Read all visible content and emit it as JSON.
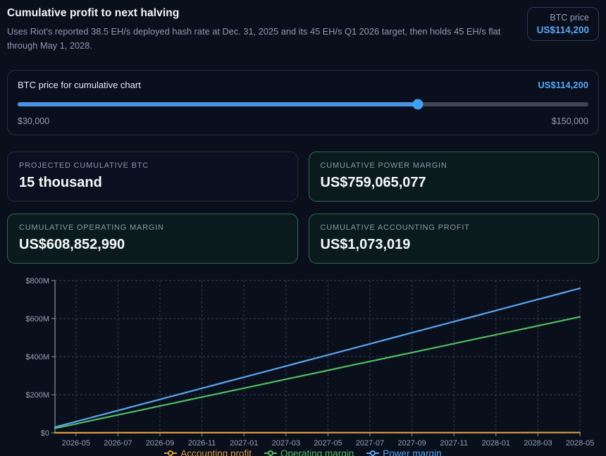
{
  "header": {
    "title": "Cumulative profit to next halving",
    "description": "Uses Riot's reported 38.5 EH/s deployed hash rate at Dec. 31, 2025 and its 45 EH/s Q1 2026 target, then holds 45 EH/s flat through May 1, 2028.",
    "btc_price_label": "BTC price",
    "btc_price_value": "US$114,200"
  },
  "slider": {
    "label": "BTC price for cumulative chart",
    "value_label": "US$114,200",
    "value": 114200,
    "min": 30000,
    "max": 150000,
    "min_label": "$30,000",
    "max_label": "$150,000",
    "percent": 70.17
  },
  "stats": [
    {
      "label": "PROJECTED CUMULATIVE BTC",
      "value": "15 thousand",
      "accent": false
    },
    {
      "label": "CUMULATIVE POWER MARGIN",
      "value": "US$759,065,077",
      "accent": true
    },
    {
      "label": "CUMULATIVE OPERATING MARGIN",
      "value": "US$608,852,990",
      "accent": true
    },
    {
      "label": "CUMULATIVE ACCOUNTING PROFIT",
      "value": "US$1,073,019",
      "accent": true
    }
  ],
  "colors": {
    "background": "#0a0f1c",
    "accent_blue": "#58a8f2",
    "slider_fill": "#4a94e4",
    "slider_track": "#40464f",
    "card_green_border": "#2d6a55",
    "axis": "#8b95a5",
    "grid": "#343d52",
    "tick_text": "#96a0b1",
    "series_accounting": "#d89a3e",
    "series_operating": "#53bd63",
    "series_power": "#5aa6ee"
  },
  "chart_data": {
    "type": "line",
    "title": "",
    "xlabel": "",
    "ylabel": "",
    "unit": "USD millions",
    "ylim": [
      0,
      800
    ],
    "grid": "dashed",
    "legend_position": "bottom",
    "y_ticks": [
      0,
      200,
      400,
      600,
      800
    ],
    "y_tick_labels": [
      "$0",
      "$200M",
      "$400M",
      "$600M",
      "$800M"
    ],
    "x": [
      "2026-04",
      "2026-05",
      "2026-06",
      "2026-07",
      "2026-08",
      "2026-09",
      "2026-10",
      "2026-11",
      "2026-12",
      "2027-01",
      "2027-02",
      "2027-03",
      "2027-04",
      "2027-05",
      "2027-06",
      "2027-07",
      "2027-08",
      "2027-09",
      "2027-10",
      "2027-11",
      "2027-12",
      "2028-01",
      "2028-02",
      "2028-03",
      "2028-04",
      "2028-05"
    ],
    "x_ticks": [
      "2026-05",
      "2026-07",
      "2026-09",
      "2026-11",
      "2027-01",
      "2027-03",
      "2027-05",
      "2027-07",
      "2027-09",
      "2027-11",
      "2028-01",
      "2028-03",
      "2028-05"
    ],
    "series": [
      {
        "name": "Accounting profit",
        "color": "#d89a3e",
        "values": [
          0.0,
          0.1,
          0.1,
          0.2,
          0.2,
          0.2,
          0.3,
          0.3,
          0.4,
          0.4,
          0.5,
          0.5,
          0.5,
          0.6,
          0.6,
          0.7,
          0.7,
          0.7,
          0.8,
          0.8,
          0.9,
          0.9,
          0.9,
          1.0,
          1.0,
          1.1
        ]
      },
      {
        "name": "Operating margin",
        "color": "#53bd63",
        "values": [
          23.4,
          46.8,
          70.3,
          93.7,
          117.1,
          140.5,
          163.9,
          187.3,
          210.8,
          234.2,
          257.6,
          281.0,
          304.4,
          327.8,
          351.3,
          374.7,
          398.1,
          421.5,
          444.9,
          468.3,
          491.8,
          515.2,
          538.6,
          562.0,
          585.4,
          608.9
        ]
      },
      {
        "name": "Power margin",
        "color": "#5aa6ee",
        "values": [
          29.2,
          58.4,
          87.6,
          116.8,
          146.0,
          175.2,
          204.4,
          233.6,
          262.8,
          292.0,
          321.1,
          350.3,
          379.5,
          408.7,
          437.9,
          467.1,
          496.3,
          525.5,
          554.7,
          583.9,
          613.1,
          642.3,
          671.4,
          700.6,
          729.8,
          759.1
        ]
      }
    ]
  }
}
